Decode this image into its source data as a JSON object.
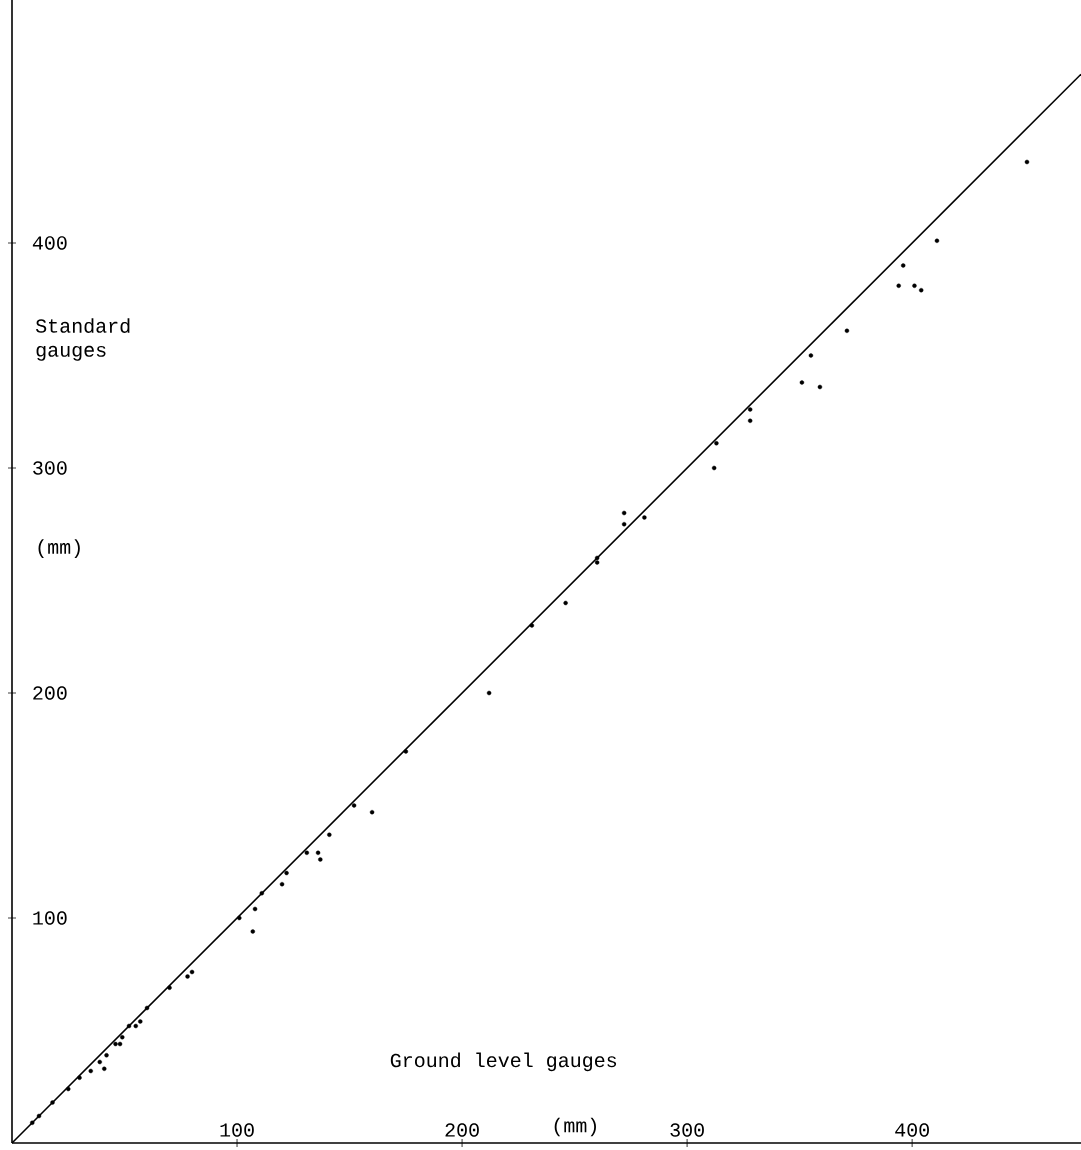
{
  "chart_data": {
    "type": "scatter",
    "xlabel": "Ground level gauges",
    "ylabel": "Standard gauges",
    "annotations": [
      "(mm)",
      "(mm)"
    ],
    "xlim": [
      0,
      475
    ],
    "ylim": [
      0,
      508
    ],
    "xticks": [
      100,
      200,
      300,
      400
    ],
    "yticks": [
      100,
      200,
      300,
      400
    ],
    "grid": false,
    "series": [
      {
        "marker": "circle",
        "color": "#000000",
        "x": [
          9,
          12,
          18,
          25,
          30,
          35,
          39,
          41,
          42,
          46,
          48,
          49,
          52,
          55,
          57,
          60,
          70,
          78,
          80,
          101,
          107,
          108,
          111,
          120,
          122,
          131,
          136,
          137,
          141,
          152,
          160,
          175,
          212,
          231,
          246,
          260,
          260,
          272,
          272,
          281,
          312,
          313,
          328,
          328,
          351,
          355,
          359,
          371,
          394,
          396,
          401,
          404,
          411,
          451
        ],
        "values": [
          9,
          12,
          18,
          24,
          29,
          32,
          36,
          33,
          39,
          44,
          44,
          47,
          52,
          52,
          54,
          60,
          69,
          74,
          76,
          100,
          94,
          104,
          111,
          115,
          120,
          129,
          129,
          126,
          137,
          150,
          147,
          174,
          200,
          230,
          240,
          258,
          260,
          275,
          280,
          278,
          300,
          311,
          321,
          326,
          338,
          350,
          336,
          361,
          381,
          390,
          381,
          379,
          401,
          436
        ]
      },
      {
        "type": "line",
        "marker": "none",
        "color": "#000000",
        "x": [
          0,
          475
        ],
        "values": [
          0,
          475
        ]
      }
    ]
  }
}
